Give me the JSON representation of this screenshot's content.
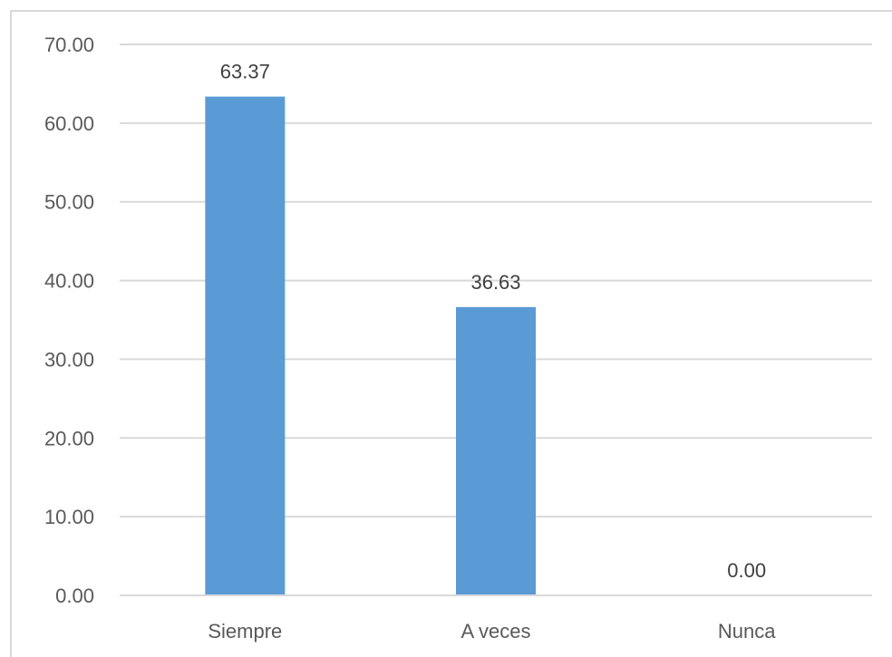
{
  "chart_data": {
    "type": "bar",
    "categories": [
      "Siempre",
      "A veces",
      "Nunca"
    ],
    "values": [
      63.37,
      36.63,
      0.0
    ],
    "data_labels": [
      "63.37",
      "36.63",
      "0.00"
    ],
    "title": "",
    "xlabel": "",
    "ylabel": "",
    "ylim": [
      0,
      70
    ],
    "yticks": [
      0,
      10,
      20,
      30,
      40,
      50,
      60,
      70
    ],
    "ytick_labels": [
      "0.00",
      "10.00",
      "20.00",
      "30.00",
      "40.00",
      "50.00",
      "60.00",
      "70.00"
    ],
    "grid": true,
    "legend": "none",
    "bar_color": "#5b9bd5",
    "gridline_color": "#d9d9d9",
    "axis_color": "#d9d9d9"
  }
}
